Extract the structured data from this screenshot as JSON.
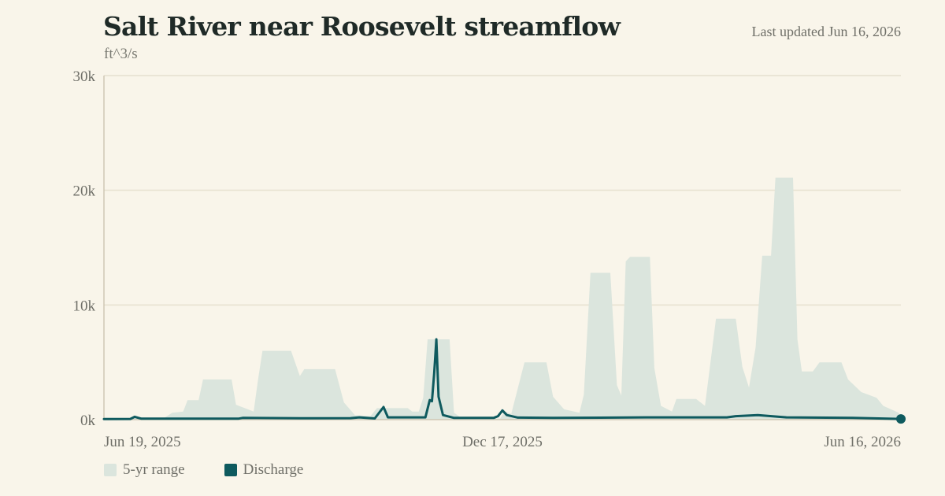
{
  "header": {
    "title": "Salt River near Roosevelt streamflow",
    "unit": "ft^3/s",
    "updated": "Last updated Jun 16, 2026"
  },
  "legend": {
    "range_label": "5-yr range",
    "discharge_label": "Discharge"
  },
  "colors": {
    "background": "#f9f5ea",
    "range_fill": "#dbe5dd",
    "discharge": "#0e5a5e",
    "grid": "#e6e0cf",
    "axis": "#cfc8b4"
  },
  "chart_data": {
    "type": "area",
    "title": "Salt River near Roosevelt streamflow",
    "ylabel": "ft^3/s",
    "xlabel": "",
    "x_range": [
      "2025-06-19",
      "2026-06-16"
    ],
    "ylim": [
      0,
      30000
    ],
    "y_ticks": [
      0,
      10000,
      20000,
      30000
    ],
    "y_tick_labels": [
      "0k",
      "10k",
      "20k",
      "30k"
    ],
    "x_ticks": [
      "2025-06-19",
      "2025-12-17",
      "2026-06-16"
    ],
    "x_tick_labels": [
      "Jun 19, 2025",
      "Dec 17, 2025",
      "Jun 16, 2026"
    ],
    "grid": true,
    "legend_position": "bottom-left",
    "series": [
      {
        "name": "5-yr range",
        "kind": "band",
        "points": [
          [
            "2025-06-19",
            100
          ],
          [
            "2025-07-16",
            100
          ],
          [
            "2025-07-20",
            600
          ],
          [
            "2025-07-25",
            700
          ],
          [
            "2025-07-27",
            1700
          ],
          [
            "2025-08-01",
            1700
          ],
          [
            "2025-08-03",
            3500
          ],
          [
            "2025-08-16",
            3500
          ],
          [
            "2025-08-18",
            1300
          ],
          [
            "2025-08-22",
            1000
          ],
          [
            "2025-08-26",
            700
          ],
          [
            "2025-08-28",
            3500
          ],
          [
            "2025-08-30",
            6000
          ],
          [
            "2025-09-12",
            6000
          ],
          [
            "2025-09-16",
            3800
          ],
          [
            "2025-09-18",
            4400
          ],
          [
            "2025-10-02",
            4400
          ],
          [
            "2025-10-06",
            1500
          ],
          [
            "2025-10-11",
            400
          ],
          [
            "2025-10-18",
            300
          ],
          [
            "2025-10-21",
            1000
          ],
          [
            "2025-11-04",
            1000
          ],
          [
            "2025-11-06",
            700
          ],
          [
            "2025-11-09",
            700
          ],
          [
            "2025-11-11",
            1900
          ],
          [
            "2025-11-13",
            7000
          ],
          [
            "2025-11-23",
            7000
          ],
          [
            "2025-11-25",
            600
          ],
          [
            "2025-11-28",
            200
          ],
          [
            "2025-12-01",
            100
          ],
          [
            "2025-12-16",
            100
          ],
          [
            "2025-12-18",
            700
          ],
          [
            "2025-12-21",
            500
          ],
          [
            "2025-12-27",
            5000
          ],
          [
            "2026-01-06",
            5000
          ],
          [
            "2026-01-09",
            2000
          ],
          [
            "2026-01-14",
            900
          ],
          [
            "2026-01-21",
            600
          ],
          [
            "2026-01-23",
            2200
          ],
          [
            "2026-01-26",
            12800
          ],
          [
            "2026-02-04",
            12800
          ],
          [
            "2026-02-07",
            3000
          ],
          [
            "2026-02-09",
            2100
          ],
          [
            "2026-02-11",
            13800
          ],
          [
            "2026-02-13",
            14200
          ],
          [
            "2026-02-22",
            14200
          ],
          [
            "2026-02-24",
            4500
          ],
          [
            "2026-02-27",
            1200
          ],
          [
            "2026-03-04",
            700
          ],
          [
            "2026-03-06",
            1800
          ],
          [
            "2026-03-15",
            1800
          ],
          [
            "2026-03-19",
            1200
          ],
          [
            "2026-03-24",
            8800
          ],
          [
            "2026-04-02",
            8800
          ],
          [
            "2026-04-05",
            4600
          ],
          [
            "2026-04-08",
            2800
          ],
          [
            "2026-04-11",
            6300
          ],
          [
            "2026-04-14",
            14300
          ],
          [
            "2026-04-18",
            14300
          ],
          [
            "2026-04-20",
            21100
          ],
          [
            "2026-04-28",
            21100
          ],
          [
            "2026-04-30",
            7000
          ],
          [
            "2026-05-02",
            4200
          ],
          [
            "2026-05-07",
            4200
          ],
          [
            "2026-05-10",
            5000
          ],
          [
            "2026-05-20",
            5000
          ],
          [
            "2026-05-23",
            3500
          ],
          [
            "2026-05-29",
            2400
          ],
          [
            "2026-06-05",
            1900
          ],
          [
            "2026-06-08",
            1200
          ],
          [
            "2026-06-15",
            600
          ],
          [
            "2026-06-16",
            200
          ]
        ]
      },
      {
        "name": "Discharge",
        "kind": "line",
        "points": [
          [
            "2025-06-19",
            50
          ],
          [
            "2025-07-01",
            60
          ],
          [
            "2025-07-03",
            250
          ],
          [
            "2025-07-06",
            80
          ],
          [
            "2025-08-19",
            80
          ],
          [
            "2025-08-21",
            150
          ],
          [
            "2025-09-20",
            120
          ],
          [
            "2025-10-09",
            130
          ],
          [
            "2025-10-13",
            200
          ],
          [
            "2025-10-20",
            100
          ],
          [
            "2025-10-24",
            1100
          ],
          [
            "2025-10-26",
            200
          ],
          [
            "2025-11-12",
            200
          ],
          [
            "2025-11-14",
            1700
          ],
          [
            "2025-11-15",
            1600
          ],
          [
            "2025-11-16",
            4000
          ],
          [
            "2025-11-17",
            7000
          ],
          [
            "2025-11-18",
            2000
          ],
          [
            "2025-11-20",
            400
          ],
          [
            "2025-11-25",
            150
          ],
          [
            "2025-12-13",
            150
          ],
          [
            "2025-12-15",
            300
          ],
          [
            "2025-12-17",
            800
          ],
          [
            "2025-12-19",
            400
          ],
          [
            "2025-12-24",
            180
          ],
          [
            "2026-01-09",
            150
          ],
          [
            "2026-02-20",
            200
          ],
          [
            "2026-03-29",
            200
          ],
          [
            "2026-04-02",
            300
          ],
          [
            "2026-04-12",
            400
          ],
          [
            "2026-04-25",
            200
          ],
          [
            "2026-05-25",
            150
          ],
          [
            "2026-06-16",
            60
          ]
        ]
      }
    ]
  }
}
